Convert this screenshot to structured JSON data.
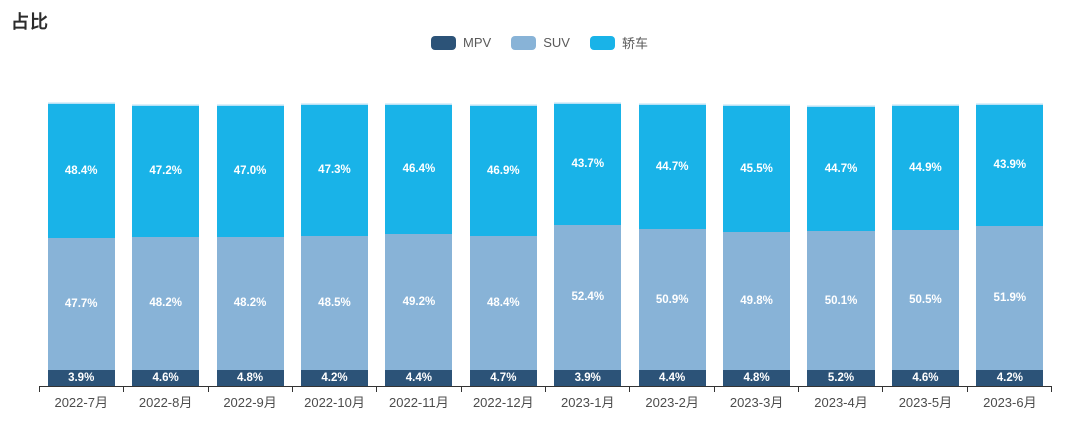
{
  "title": "占比",
  "legend": {
    "position": "top-center",
    "items": [
      {
        "label": "MPV",
        "color": "#2c5378"
      },
      {
        "label": "SUV",
        "color": "#88b3d7"
      },
      {
        "label": "轿车",
        "color": "#19b3e8"
      }
    ]
  },
  "colors": {
    "mpv": "#2c5378",
    "suv": "#88b3d7",
    "sedan": "#19b3e8",
    "axis": "#333333",
    "segment_label": "#ffffff",
    "axis_label": "#4c4c4c",
    "title": "#2b2b2b",
    "background": "#ffffff"
  },
  "chart_data": {
    "type": "bar",
    "stacked": true,
    "title": "占比",
    "xlabel": "",
    "ylabel": "",
    "ylim": [
      0,
      100
    ],
    "grid": false,
    "legend_position": "top-center",
    "value_suffix": "%",
    "categories": [
      "2022-7月",
      "2022-8月",
      "2022-9月",
      "2022-10月",
      "2022-11月",
      "2022-12月",
      "2023-1月",
      "2023-2月",
      "2023-3月",
      "2023-4月",
      "2023-5月",
      "2023-6月"
    ],
    "series": [
      {
        "name": "MPV",
        "slug": "mpv",
        "color": "#2c5378",
        "values": [
          3.9,
          4.6,
          4.8,
          4.2,
          4.4,
          4.7,
          3.9,
          4.4,
          4.8,
          5.2,
          4.6,
          4.2
        ]
      },
      {
        "name": "SUV",
        "slug": "suv",
        "color": "#88b3d7",
        "values": [
          47.7,
          48.2,
          48.2,
          48.5,
          49.2,
          48.4,
          52.4,
          50.9,
          49.8,
          50.1,
          50.5,
          51.9
        ]
      },
      {
        "name": "轿车",
        "slug": "sedan",
        "color": "#19b3e8",
        "values": [
          48.4,
          47.2,
          47.0,
          47.3,
          46.4,
          46.9,
          43.7,
          44.7,
          45.5,
          44.7,
          44.9,
          43.9
        ]
      }
    ]
  }
}
